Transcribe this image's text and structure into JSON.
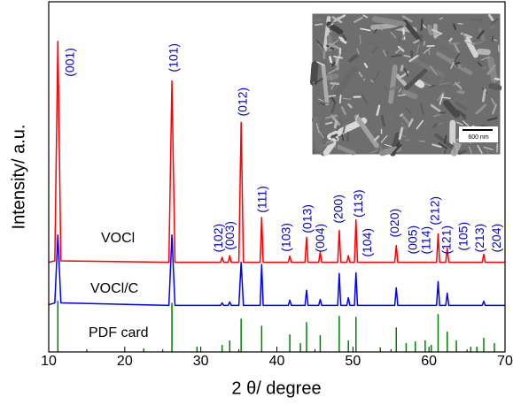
{
  "chart_data": {
    "type": "line",
    "xlabel": "2 θ/ degree",
    "ylabel": "Intensity/ a.u.",
    "xlim": [
      10,
      70
    ],
    "xticks": [
      10,
      20,
      30,
      40,
      50,
      60,
      70
    ],
    "ylim": [
      0,
      100
    ],
    "grid": false,
    "series": [
      {
        "name": "VOCl",
        "color": "#ff0000",
        "type": "line",
        "x": [
          10,
          10.8,
          11.2,
          11.6,
          25.8,
          26.2,
          26.6,
          32.6,
          32.8,
          33.0,
          33.6,
          33.8,
          34.0,
          35.0,
          35.3,
          35.6,
          37.8,
          38.0,
          38.2,
          41.5,
          41.7,
          41.9,
          43.7,
          43.9,
          44.1,
          45.5,
          45.7,
          45.9,
          48.0,
          48.2,
          48.4,
          49.2,
          49.4,
          49.6,
          50.2,
          50.4,
          50.6,
          55.5,
          55.7,
          55.9,
          61.0,
          61.2,
          61.4,
          62.2,
          62.4,
          62.6,
          67.0,
          67.2,
          67.4,
          70
        ],
        "values": [
          25.6,
          26,
          88.7,
          26,
          25.6,
          77.4,
          25.6,
          25.6,
          27,
          25.6,
          25.6,
          27.5,
          25.6,
          25.6,
          65.6,
          25.6,
          25.6,
          38.4,
          25.6,
          25.6,
          27.4,
          25.6,
          25.6,
          32.7,
          25.6,
          25.6,
          28.5,
          25.6,
          25.6,
          34.7,
          25.6,
          25.6,
          27.5,
          25.6,
          25.6,
          37.7,
          25.6,
          25.6,
          30.4,
          25.6,
          25.6,
          33.7,
          25.6,
          25.6,
          29.6,
          25.6,
          25.6,
          27.9,
          25.6,
          25.6
        ]
      },
      {
        "name": "VOCl/C",
        "color": "#0000ff",
        "type": "line",
        "x": [
          10,
          10.8,
          11.2,
          11.6,
          25.8,
          26.2,
          26.6,
          32.6,
          32.8,
          33.0,
          33.6,
          33.8,
          34.0,
          35.0,
          35.3,
          35.6,
          37.8,
          38.0,
          38.2,
          41.5,
          41.7,
          41.9,
          43.7,
          43.9,
          44.1,
          45.5,
          45.7,
          45.9,
          48.0,
          48.2,
          48.4,
          49.2,
          49.4,
          49.6,
          50.2,
          50.4,
          50.6,
          55.5,
          55.7,
          55.9,
          61.0,
          61.2,
          61.4,
          62.2,
          62.4,
          62.6,
          67.0,
          67.2,
          67.4,
          70
        ],
        "values": [
          13.5,
          14,
          33.4,
          14,
          13.3,
          33.4,
          13.3,
          13.3,
          14,
          13.3,
          13.3,
          14.3,
          13.3,
          13.3,
          25.6,
          13.3,
          13.3,
          25,
          13.3,
          13.3,
          14.8,
          13.3,
          13.3,
          17.6,
          13.3,
          13.3,
          15,
          13.3,
          13.3,
          22.4,
          13.3,
          13.3,
          15.5,
          13.3,
          13.3,
          22.6,
          13.3,
          13.3,
          18.3,
          13.3,
          13.3,
          20.1,
          13.3,
          13.3,
          16.8,
          13.3,
          13.3,
          14.5,
          13.3,
          13.3
        ]
      },
      {
        "name": "PDF card",
        "color": "#008000",
        "type": "stem",
        "x": [
          11.2,
          22.5,
          26.2,
          29.5,
          32.8,
          33.8,
          35.3,
          38.0,
          41.7,
          43.1,
          43.9,
          45.7,
          48.2,
          49.4,
          50.4,
          53.6,
          55.7,
          57.0,
          58.2,
          59.5,
          60.3,
          61.2,
          62.4,
          63.6,
          65.5,
          66.3,
          67.2,
          68.6
        ],
        "values": [
          14.6,
          1,
          14,
          1.5,
          2,
          3.3,
          9.5,
          7.5,
          5,
          2.5,
          8.5,
          4.8,
          10.3,
          3.3,
          10,
          1.3,
          7,
          2.5,
          3,
          3.3,
          2,
          10.8,
          5.8,
          3.3,
          1.5,
          1.5,
          4,
          2.5
        ]
      }
    ],
    "annotations": [
      {
        "text": "(001)",
        "x": 12.9,
        "y": 78.6
      },
      {
        "text": "(101)",
        "x": 26.5,
        "y": 79.9
      },
      {
        "text": "(012)",
        "x": 35.6,
        "y": 67.3
      },
      {
        "text": "(111)",
        "x": 38.2,
        "y": 39.7
      },
      {
        "text": "(102)",
        "x": 32.4,
        "y": 28.4
      },
      {
        "text": "(003)",
        "x": 33.9,
        "y": 29.1
      },
      {
        "text": "(103)",
        "x": 41.3,
        "y": 28.6
      },
      {
        "text": "(013)",
        "x": 44.1,
        "y": 33.9
      },
      {
        "text": "(004)",
        "x": 45.8,
        "y": 28.4
      },
      {
        "text": "(200)",
        "x": 48.2,
        "y": 36.7
      },
      {
        "text": "(113)",
        "x": 50.8,
        "y": 38.4
      },
      {
        "text": "(104)",
        "x": 52.0,
        "y": 27.1
      },
      {
        "text": "(020)",
        "x": 55.6,
        "y": 32.7
      },
      {
        "text": "(005)",
        "x": 58.0,
        "y": 27.9
      },
      {
        "text": "(114)",
        "x": 59.7,
        "y": 27.9
      },
      {
        "text": "(212)",
        "x": 60.9,
        "y": 36.2
      },
      {
        "text": "(121)",
        "x": 62.4,
        "y": 27.9
      },
      {
        "text": "(105)",
        "x": 64.6,
        "y": 28.9
      },
      {
        "text": "(213)",
        "x": 66.8,
        "y": 28.4
      },
      {
        "text": "(204)",
        "x": 69.0,
        "y": 28.4
      }
    ],
    "inset": {
      "scale_label": "600 nm"
    }
  }
}
